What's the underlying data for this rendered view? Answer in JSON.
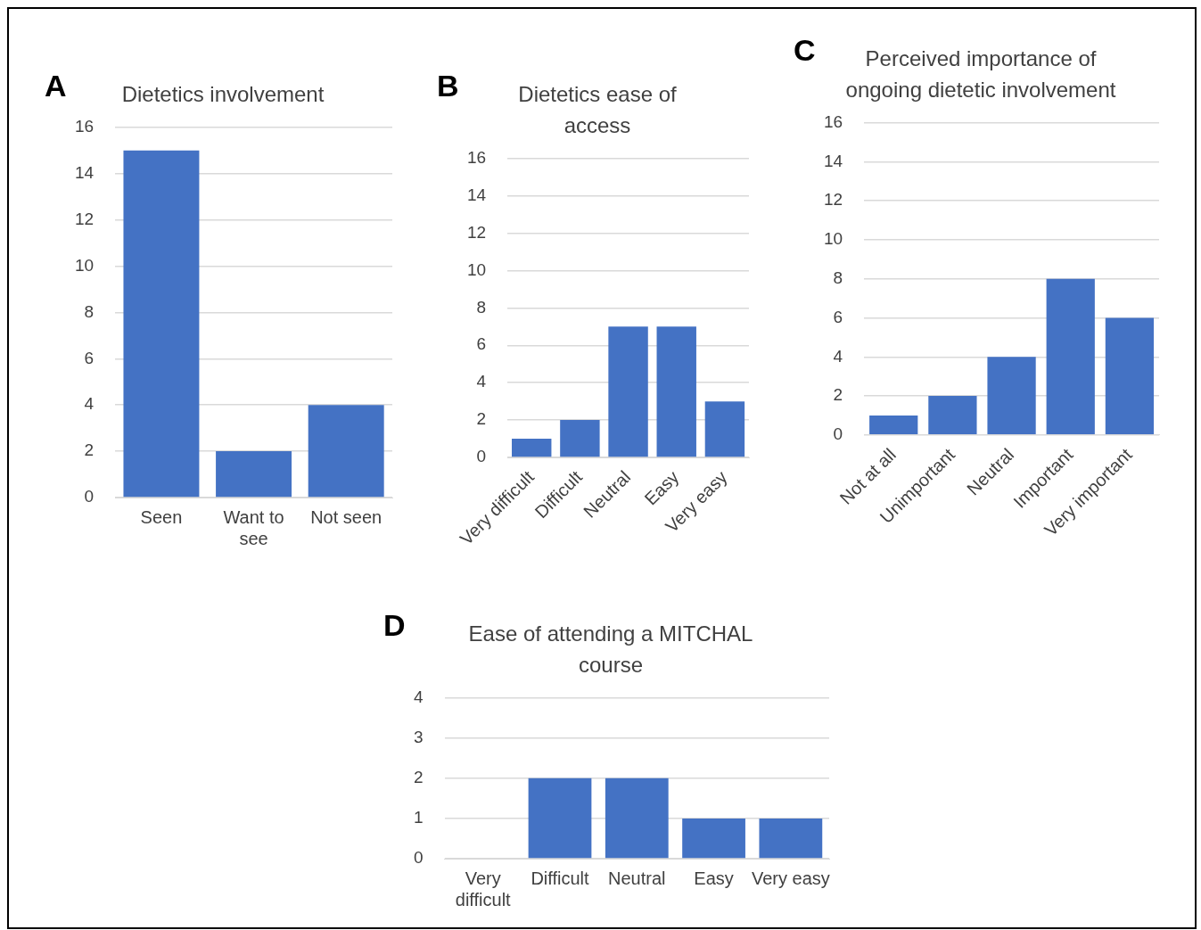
{
  "chart_data": [
    {
      "type": "bar",
      "title": "Dietetics involvement",
      "annotations": [
        "A"
      ],
      "categories": [
        "Seen",
        "Want to see",
        "Not seen"
      ],
      "values": [
        15,
        2,
        4
      ],
      "color": "#4472c4",
      "ylim": [
        0,
        16
      ],
      "yticks": [
        0,
        2,
        4,
        6,
        8,
        10,
        12,
        14,
        16
      ],
      "grid": "y"
    },
    {
      "type": "bar",
      "title": "Dietetics ease of access",
      "annotations": [
        "B"
      ],
      "categories": [
        "Very difficult",
        "Difficult",
        "Neutral",
        "Easy",
        "Very easy"
      ],
      "values": [
        1,
        2,
        7,
        7,
        3
      ],
      "color": "#4472c4",
      "ylim": [
        0,
        16
      ],
      "yticks": [
        0,
        2,
        4,
        6,
        8,
        10,
        12,
        14,
        16
      ],
      "grid": "y"
    },
    {
      "type": "bar",
      "title": "Perceived importance of ongoing dietetic involvement",
      "annotations": [
        "C"
      ],
      "categories": [
        "Not at all",
        "Unimportant",
        "Neutral",
        "Important",
        "Very important"
      ],
      "values": [
        1,
        2,
        4,
        8,
        6
      ],
      "color": "#4472c4",
      "ylim": [
        0,
        16
      ],
      "yticks": [
        0,
        2,
        4,
        6,
        8,
        10,
        12,
        14,
        16
      ],
      "grid": "y"
    },
    {
      "type": "bar",
      "title": "Ease of attending a MITCHAL course",
      "annotations": [
        "D"
      ],
      "categories": [
        "Very difficult",
        "Difficult",
        "Neutral",
        "Easy",
        "Very easy"
      ],
      "values": [
        0,
        2,
        2,
        1,
        1
      ],
      "color": "#4472c4",
      "ylim": [
        0,
        4
      ],
      "yticks": [
        0,
        1,
        2,
        3,
        4
      ],
      "grid": "y"
    }
  ]
}
